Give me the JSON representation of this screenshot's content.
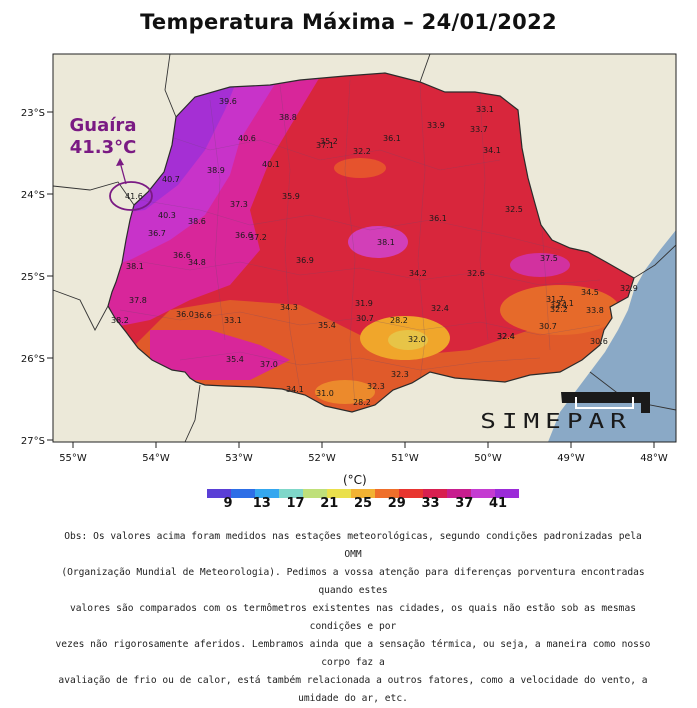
{
  "title": "Temperatura Máxima – 24/01/2022",
  "highlight": {
    "name": "Guaíra",
    "value": "41.3°C"
  },
  "axes": {
    "lat_labels": [
      "23°S",
      "24°S",
      "25°S",
      "26°S",
      "27°S"
    ],
    "lon_labels": [
      "55°W",
      "54°W",
      "53°W",
      "52°W",
      "51°W",
      "50°W",
      "49°W",
      "48°W"
    ]
  },
  "stations": [
    "39.6",
    "38.8",
    "36.1",
    "33.9",
    "33.7",
    "33.1",
    "40.6",
    "35.2",
    "37.1",
    "32.2",
    "34.1",
    "38.9",
    "40.1",
    "40.7",
    "41.6",
    "37.3",
    "35.9",
    "36.1",
    "32.5",
    "40.3",
    "38.6",
    "36.7",
    "36.6",
    "37.2",
    "38.1",
    "34.8",
    "36.9",
    "34.2",
    "32.6",
    "37.5",
    "38.1",
    "36.6",
    "37.8",
    "31.9",
    "31.7",
    "34.5",
    "32.4",
    "34.3",
    "28.2",
    "32.1",
    "33.1",
    "36.0",
    "36.6",
    "30.7",
    "35.4",
    "32.4",
    "30.6",
    "32.2",
    "35.4",
    "37.0",
    "32.3",
    "33.8",
    "34.1",
    "31.0",
    "32.3",
    "28.2",
    "30.7",
    "38.2",
    "32.1",
    "32.9",
    "32.4",
    "32.0"
  ],
  "legend": {
    "unit": "(°C)",
    "ticks": [
      "9",
      "13",
      "17",
      "21",
      "25",
      "29",
      "33",
      "37",
      "41"
    ],
    "colors": [
      "#5a3fd6",
      "#2d6ee6",
      "#34a7ef",
      "#7fd7c9",
      "#bfe07a",
      "#eae04b",
      "#f2b233",
      "#ef6f2a",
      "#e8352f",
      "#d81f4f",
      "#c71e8e",
      "#c43bd1",
      "#9b2bd8"
    ]
  },
  "logo_text": "SIMEPAR",
  "obs_lines": [
    "Obs: Os valores acima foram medidos nas estações meteorológicas, segundo condições padronizadas pela OMM",
    "(Organização Mundial de Meteorologia). Pedimos a vossa atenção para diferenças porventura encontradas quando estes",
    "valores são comparados com os termômetros existentes nas cidades, os quais não estão sob as mesmas condições e por",
    "vezes não rigorosamente aferidos. Lembramos ainda que a sensação térmica, ou seja, a maneira como nosso corpo faz a",
    "avaliação de frio ou de calor, está também relacionada a outros fatores, como a velocidade do vento, a umidade do ar, etc."
  ]
}
